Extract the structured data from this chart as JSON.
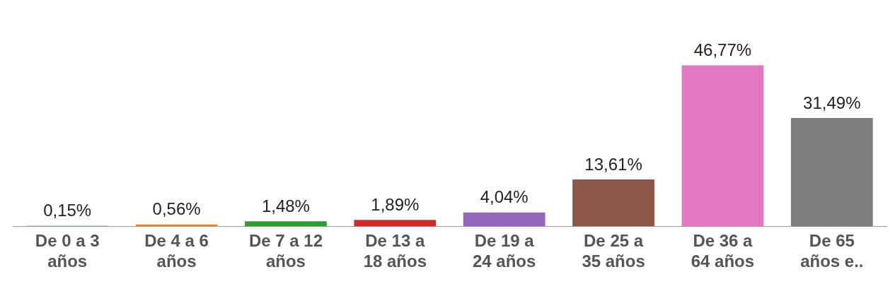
{
  "chart_data": {
    "type": "bar",
    "categories": [
      "De 0 a 3 años",
      "De 4 a 6 años",
      "De 7 a 12 años",
      "De 13 a 18 años",
      "De 19 a 24 años",
      "De 25 a 35 años",
      "De 36 a 64 años",
      "De 65 años e.."
    ],
    "values": [
      0.15,
      0.56,
      1.48,
      1.89,
      4.04,
      13.61,
      46.77,
      31.49
    ],
    "value_labels": [
      "0,15%",
      "0,56%",
      "1,48%",
      "1,89%",
      "4,04%",
      "13,61%",
      "46,77%",
      "31,49%"
    ],
    "colors": [
      "#1f77b4",
      "#ff7f0e",
      "#2ca02c",
      "#d62728",
      "#9467bd",
      "#8c564b",
      "#e377c2",
      "#7f7f7f"
    ],
    "legend": false,
    "grid": false
  }
}
